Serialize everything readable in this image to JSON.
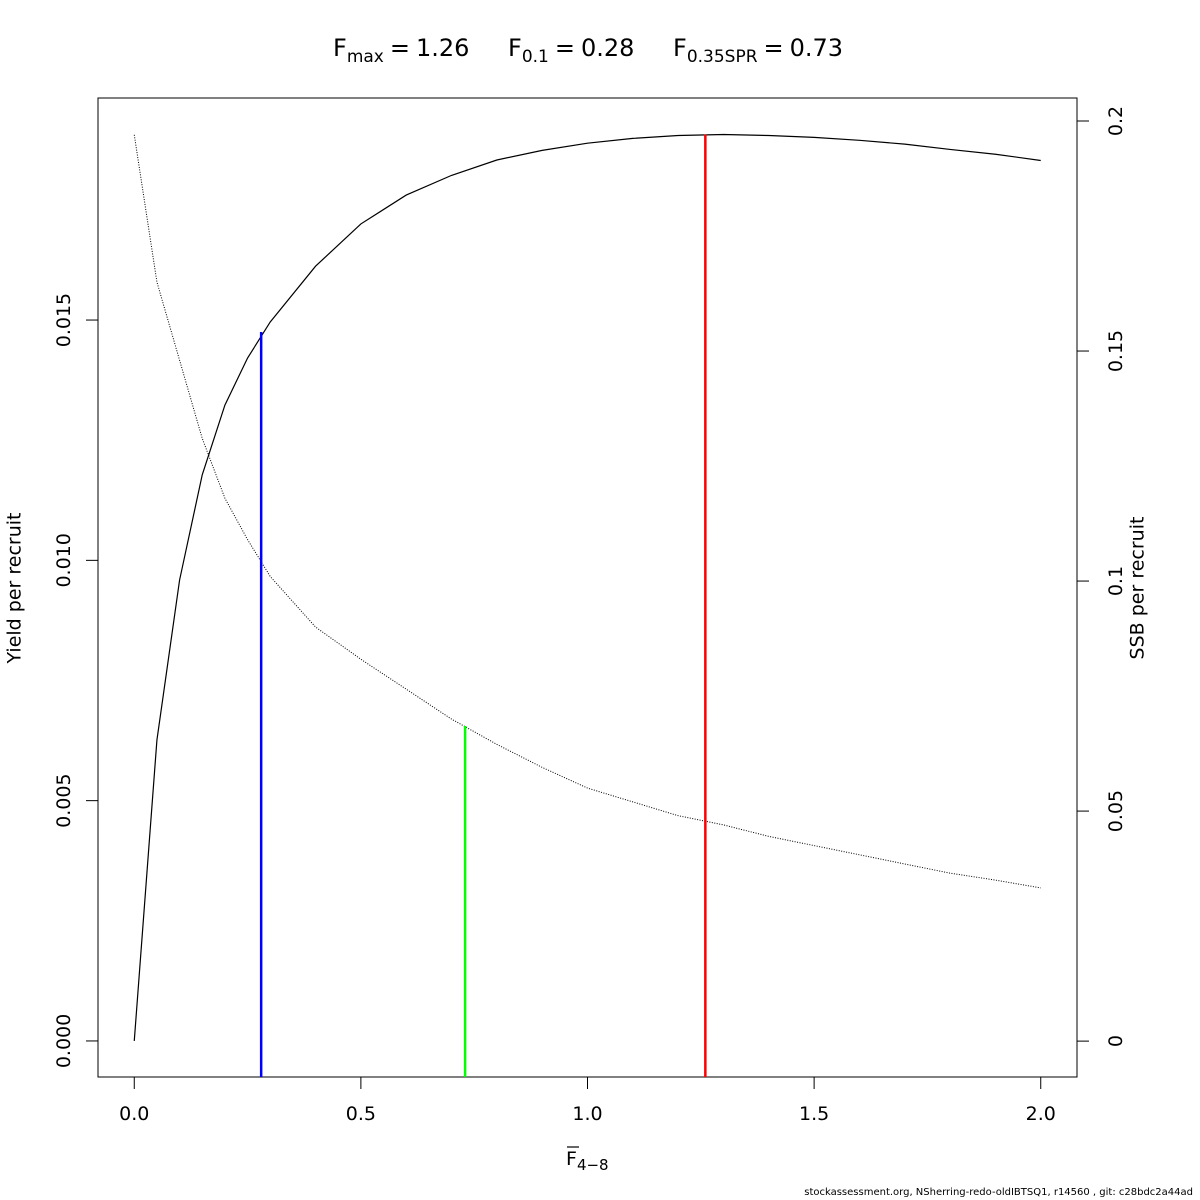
{
  "chart_data": {
    "type": "line",
    "title": [
      {
        "symbol": "F",
        "subscript": "max",
        "relation": "=",
        "ref": 0
      },
      {
        "symbol": "F",
        "subscript": "0.1",
        "relation": "=",
        "ref": 1
      },
      {
        "symbol": "F",
        "subscript": "0.35SPR",
        "relation": "=",
        "ref": 2
      }
    ],
    "xlabel": {
      "symbol": "F",
      "subscript": "4−8"
    },
    "ylabel": "Yield per recruit",
    "y2label": "SSB per recruit",
    "footer": "stockassessment.org, NSherring-redo-oldIBTSQ1, r14560 , git: c28bdc2a44ad",
    "x": [
      0,
      0.05,
      0.1,
      0.15,
      0.2,
      0.25,
      0.3,
      0.4,
      0.5,
      0.6,
      0.7,
      0.8,
      0.9,
      1.0,
      1.1,
      1.2,
      1.3,
      1.4,
      1.5,
      1.6,
      1.7,
      1.8,
      1.9,
      2.0
    ],
    "series": [
      {
        "name": "Yield per recruit",
        "color": "#000000",
        "dash": "solid",
        "values": [
          0,
          0.00626,
          0.00959,
          0.01178,
          0.01323,
          0.01421,
          0.01496,
          0.01612,
          0.017,
          0.0176,
          0.01801,
          0.01833,
          0.01853,
          0.01868,
          0.01878,
          0.01884,
          0.01886,
          0.01884,
          0.0188,
          0.01874,
          0.01866,
          0.01855,
          0.01845,
          0.01832
        ]
      },
      {
        "name": "SSB per recruit",
        "color": "#000000",
        "dash": "dotted",
        "axis": "y2",
        "values": [
          0.197,
          0.165,
          0.148,
          0.131,
          0.118,
          0.109,
          0.101,
          0.09,
          0.083,
          0.0765,
          0.07,
          0.0645,
          0.0595,
          0.055,
          0.052,
          0.049,
          0.047,
          0.0445,
          0.0425,
          0.0405,
          0.0385,
          0.0365,
          0.035,
          0.0333
        ]
      }
    ],
    "reference_lines": [
      {
        "value": 1.26,
        "top": 0.01886,
        "color": "#ff0000"
      },
      {
        "value": 0.28,
        "top": 0.01475,
        "color": "#0000ff"
      },
      {
        "value": 0.73,
        "top": 0.0685,
        "axis": "y2",
        "color": "#00ff00"
      }
    ],
    "xlim": [
      -0.08,
      2.08
    ],
    "xticks": [
      {
        "value": 0,
        "label": "0.0"
      },
      {
        "value": 0.5,
        "label": "0.5"
      },
      {
        "value": 1,
        "label": "1.0"
      },
      {
        "value": 1.5,
        "label": "1.5"
      },
      {
        "value": 2,
        "label": "2.0"
      }
    ],
    "ylim": [
      -0.00075,
      0.01962
    ],
    "yticks": [
      {
        "value": 0,
        "label": "0.000"
      },
      {
        "value": 0.005,
        "label": "0.005"
      },
      {
        "value": 0.01,
        "label": "0.010"
      },
      {
        "value": 0.015,
        "label": "0.015"
      }
    ],
    "y2lim": [
      -0.0078,
      0.205
    ],
    "y2ticks": [
      0,
      0.05,
      0.1,
      0.15,
      0.2
    ]
  }
}
